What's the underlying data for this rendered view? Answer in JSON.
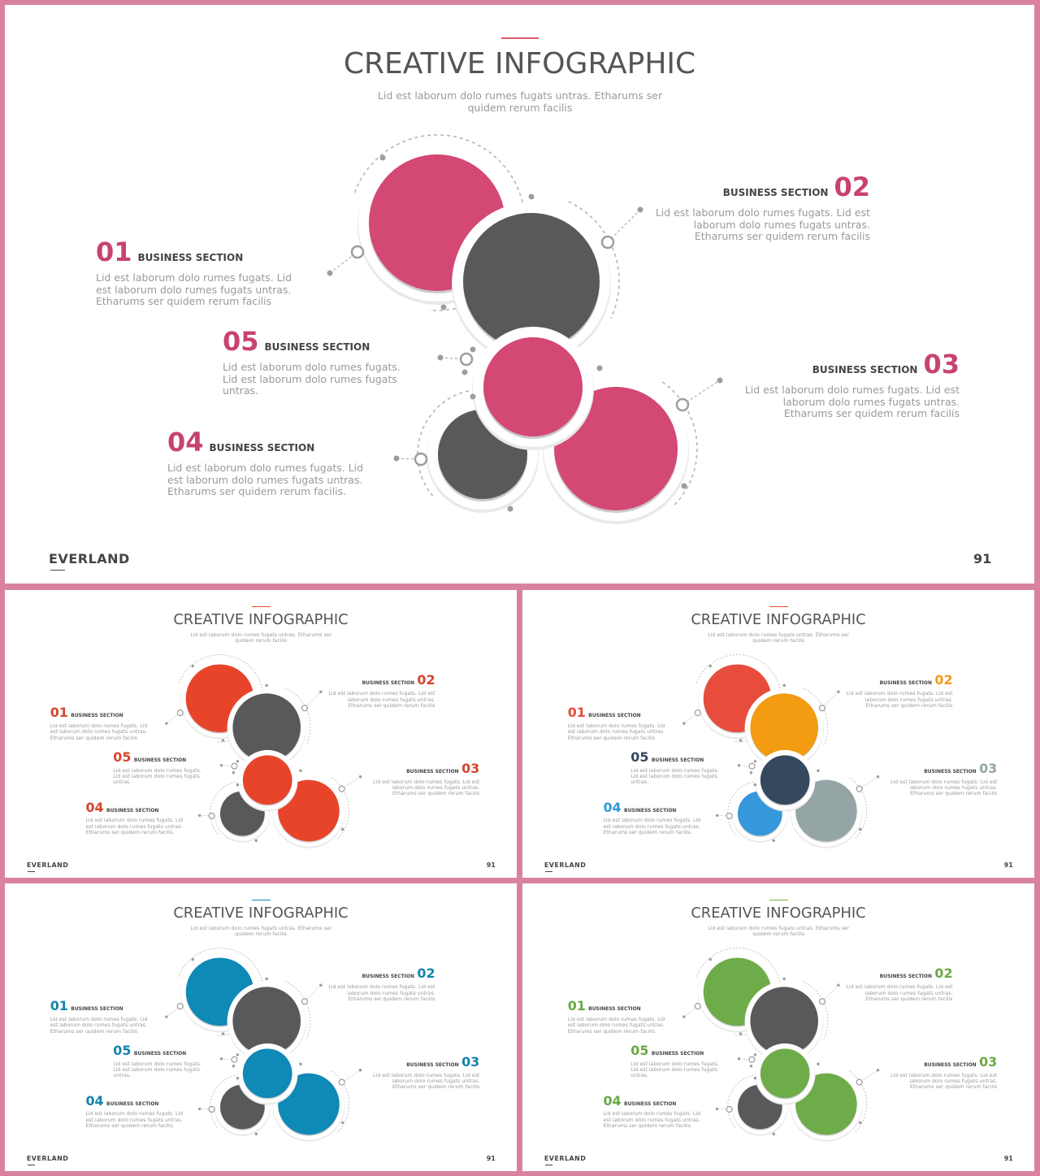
{
  "slides": [
    {
      "title": "CREATIVE INFOGRAPHIC",
      "subtitle": "Lid est laborum dolo rumes fugats untras. Etharums ser quidem rerum facilis",
      "brand": "EVERLAND",
      "page_number": "91",
      "accent_color": "#e05a6c",
      "circle_colors": {
        "c1": "#d44874",
        "c2": "#58595b",
        "c3": "#d44874",
        "c4": "#58595b",
        "c5": "#d44874"
      },
      "number_color": "#c7436d",
      "sections": [
        {
          "number": "01",
          "label": "BUSINESS SECTION",
          "text": "Lid est laborum dolo rumes fugats. Lid est laborum dolo rumes fugats untras. Etharums ser quidem rerum facilis"
        },
        {
          "number": "02",
          "label": "BUSINESS SECTION",
          "text": "Lid est laborum dolo rumes fugats. Lid est laborum dolo rumes fugats untras. Etharums ser quidem rerum facilis"
        },
        {
          "number": "03",
          "label": "BUSINESS SECTION",
          "text": "Lid est laborum dolo rumes fugats. Lid est laborum dolo rumes fugats untras. Etharums ser quidem rerum facilis"
        },
        {
          "number": "04",
          "label": "BUSINESS SECTION",
          "text": "Lid est laborum dolo rumes fugats. Lid est laborum dolo rumes fugats untras. Etharums ser quidem rerum facilis."
        },
        {
          "number": "05",
          "label": "BUSINESS SECTION",
          "text": "Lid est laborum dolo rumes fugats. Lid est laborum dolo rumes fugats untras."
        }
      ]
    },
    {
      "title": "CREATIVE INFOGRAPHIC",
      "subtitle": "Lid est laborum dolo rumes fugats untras. Etharums ser quidem rerum facilis",
      "brand": "EVERLAND",
      "page_number": "91",
      "accent_color": "#e8442a",
      "circle_colors": {
        "c1": "#e8442a",
        "c2": "#58595b",
        "c3": "#e8442a",
        "c4": "#58595b",
        "c5": "#e8442a"
      },
      "number_color": "#d8432c",
      "sections": [
        {
          "number": "01",
          "label": "BUSINESS SECTION",
          "text": "Lid est laborum dolo rumes fugats. Lid est laborum dolo rumes fugats untras. Etharums ser quidem rerum facilis"
        },
        {
          "number": "02",
          "label": "BUSINESS SECTION",
          "text": "Lid est laborum dolo rumes fugats. Lid est laborum dolo rumes fugats untras. Etharums ser quidem rerum facilis"
        },
        {
          "number": "03",
          "label": "BUSINESS SECTION",
          "text": "Lid est laborum dolo rumes fugats. Lid est laborum dolo rumes fugats untras. Etharums ser quidem rerum facilis"
        },
        {
          "number": "04",
          "label": "BUSINESS SECTION",
          "text": "Lid est laborum dolo rumes fugats. Lid est laborum dolo rumes fugats untras. Etharums ser quidem rerum facilis."
        },
        {
          "number": "05",
          "label": "BUSINESS SECTION",
          "text": "Lid est laborum dolo rumes fugats. Lid est laborum dolo rumes fugats untras."
        }
      ]
    },
    {
      "title": "CREATIVE INFOGRAPHIC",
      "subtitle": "Lid est laborum dolo rumes fugats untras. Etharums ser quidem rerum facilis",
      "brand": "EVERLAND",
      "page_number": "91",
      "accent_color": "#e74c3c",
      "circle_colors": {
        "c1": "#e74c3c",
        "c2": "#f39c12",
        "c3": "#34495e",
        "c4": "#3498db",
        "c5": "#95a5a6"
      },
      "number_colors": [
        "#e74c3c",
        "#f39c12",
        "#95a5a6",
        "#3498db",
        "#34495e"
      ],
      "sections": [
        {
          "number": "01",
          "label": "BUSINESS SECTION",
          "text": "Lid est laborum dolo rumes fugats. Lid est laborum dolo rumes fugats untras. Etharums ser quidem rerum facilis"
        },
        {
          "number": "02",
          "label": "BUSINESS SECTION",
          "text": "Lid est laborum dolo rumes fugats. Lid est laborum dolo rumes fugats untras. Etharums ser quidem rerum facilis"
        },
        {
          "number": "03",
          "label": "BUSINESS SECTION",
          "text": "Lid est laborum dolo rumes fugats. Lid est laborum dolo rumes fugats untras. Etharums ser quidem rerum facilis"
        },
        {
          "number": "04",
          "label": "BUSINESS SECTION",
          "text": "Lid est laborum dolo rumes fugats. Lid est laborum dolo rumes fugats untras. Etharums ser quidem rerum facilis."
        },
        {
          "number": "05",
          "label": "BUSINESS SECTION",
          "text": "Lid est laborum dolo rumes fugats. Lid est laborum dolo rumes fugats untras."
        }
      ]
    },
    {
      "title": "CREATIVE INFOGRAPHIC",
      "subtitle": "Lid est laborum dolo rumes fugats untras. Etharums ser quidem rerum facilis",
      "brand": "EVERLAND",
      "page_number": "91",
      "accent_color": "#1a8ab4",
      "circle_colors": {
        "c1": "#0f89b5",
        "c2": "#58595b",
        "c3": "#0f89b5",
        "c4": "#58595b",
        "c5": "#0f89b5"
      },
      "number_color": "#1483ad",
      "sections": [
        {
          "number": "01",
          "label": "BUSINESS SECTION",
          "text": "Lid est laborum dolo rumes fugats. Lid est laborum dolo rumes fugats untras. Etharums ser quidem rerum facilis"
        },
        {
          "number": "02",
          "label": "BUSINESS SECTION",
          "text": "Lid est laborum dolo rumes fugats. Lid est laborum dolo rumes fugats untras. Etharums ser quidem rerum facilis"
        },
        {
          "number": "03",
          "label": "BUSINESS SECTION",
          "text": "Lid est laborum dolo rumes fugats. Lid est laborum dolo rumes fugats untras. Etharums ser quidem rerum facilis"
        },
        {
          "number": "04",
          "label": "BUSINESS SECTION",
          "text": "Lid est laborum dolo rumes fugats. Lid est laborum dolo rumes fugats untras. Etharums ser quidem rerum facilis."
        },
        {
          "number": "05",
          "label": "BUSINESS SECTION",
          "text": "Lid est laborum dolo rumes fugats. Lid est laborum dolo rumes fugats untras."
        }
      ]
    },
    {
      "title": "CREATIVE INFOGRAPHIC",
      "subtitle": "Lid est laborum dolo rumes fugats untras. Etharums ser quidem rerum facilis",
      "brand": "EVERLAND",
      "page_number": "91",
      "accent_color": "#7aac47",
      "circle_colors": {
        "c1": "#6eac4a",
        "c2": "#58595b",
        "c3": "#6eac4a",
        "c4": "#58595b",
        "c5": "#6eac4a"
      },
      "number_color": "#6aa843",
      "sections": [
        {
          "number": "01",
          "label": "BUSINESS SECTION",
          "text": "Lid est laborum dolo rumes fugats. Lid est laborum dolo rumes fugats untras. Etharums ser quidem rerum facilis"
        },
        {
          "number": "02",
          "label": "BUSINESS SECTION",
          "text": "Lid est laborum dolo rumes fugats. Lid est laborum dolo rumes fugats untras. Etharums ser quidem rerum facilis"
        },
        {
          "number": "03",
          "label": "BUSINESS SECTION",
          "text": "Lid est laborum dolo rumes fugats. Lid est laborum dolo rumes fugats untras. Etharums ser quidem rerum facilis"
        },
        {
          "number": "04",
          "label": "BUSINESS SECTION",
          "text": "Lid est laborum dolo rumes fugats. Lid est laborum dolo rumes fugats untras. Etharums ser quidem rerum facilis."
        },
        {
          "number": "05",
          "label": "BUSINESS SECTION",
          "text": "Lid est laborum dolo rumes fugats. Lid est laborum dolo rumes fugats untras."
        }
      ]
    }
  ]
}
